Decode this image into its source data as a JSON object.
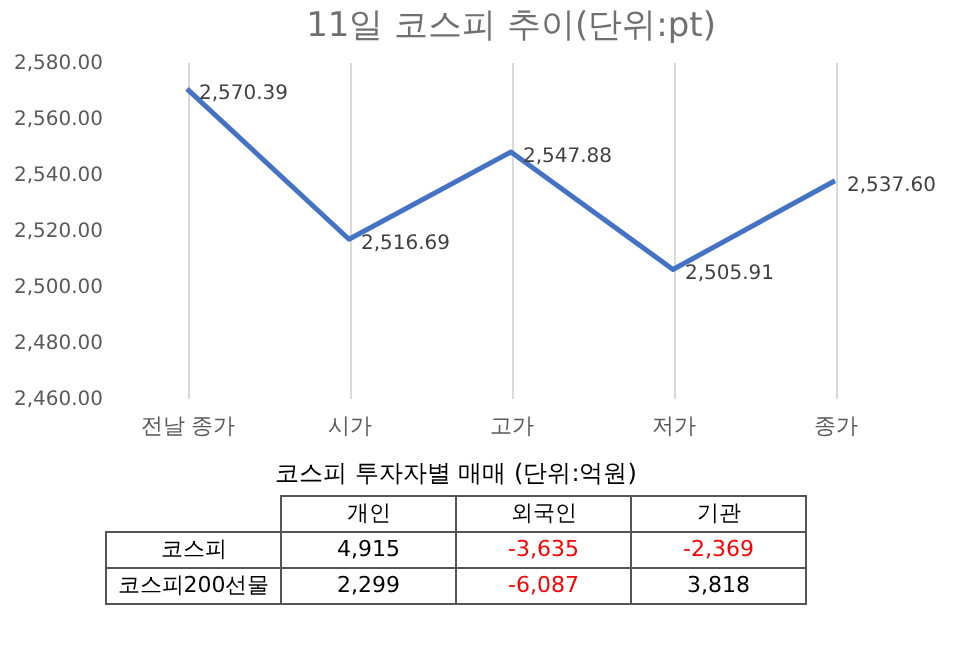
{
  "chart_data": [
    {
      "type": "line",
      "title": "11일 코스피 추이(단위:pt)",
      "categories": [
        "전날 종가",
        "시가",
        "고가",
        "저가",
        "종가"
      ],
      "series": [
        {
          "color": "#4472c4",
          "values": [
            2570.39,
            2516.69,
            2547.88,
            2505.91,
            2537.6
          ],
          "value_labels": [
            "2,570.39",
            "2,516.69",
            "2,547.88",
            "2,505.91",
            "2,537.60"
          ]
        }
      ],
      "ylim": [
        2460,
        2580
      ],
      "yticks": [
        {
          "value": 2460,
          "label": "2,460.00"
        },
        {
          "value": 2480,
          "label": "2,480.00"
        },
        {
          "value": 2500,
          "label": "2,500.00"
        },
        {
          "value": 2520,
          "label": "2,520.00"
        },
        {
          "value": 2540,
          "label": "2,540.00"
        },
        {
          "value": 2560,
          "label": "2,560.00"
        },
        {
          "value": 2580,
          "label": "2,580.00"
        }
      ],
      "grid": "x",
      "marker": "none",
      "legend": false
    },
    {
      "type": "other",
      "title": "코스피 투자자별 매매 (단위:억원)",
      "categories": [
        "개인",
        "외국인",
        "기관"
      ],
      "y_categories": [
        "코스피",
        "코스피200선물"
      ],
      "cell_labels": [
        [
          "4,915",
          "-3,635",
          "-2,369"
        ],
        [
          "2,299",
          "-6,087",
          "3,818"
        ]
      ],
      "colors": [
        [
          "#000000",
          "#ff0000",
          "#ff0000"
        ],
        [
          "#000000",
          "#ff0000",
          "#000000"
        ]
      ]
    }
  ]
}
